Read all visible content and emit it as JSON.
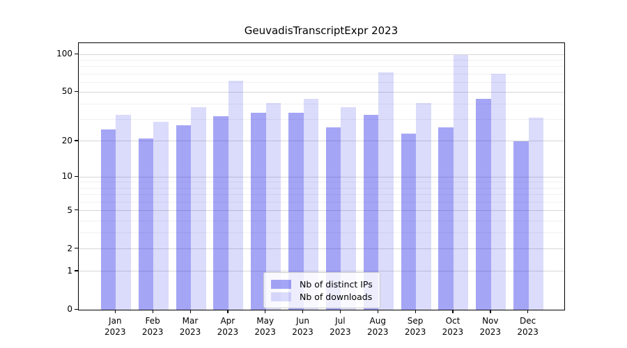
{
  "title": "GeuvadisTranscriptExpr 2023",
  "colors": {
    "background": "#ffffff",
    "axis": "#000000",
    "grid_major": "rgba(0,0,0,0.16)",
    "grid_minor": "rgba(0,0,0,0.06)",
    "bar_distinct_ips": "rgba(40,40,230,0.42)",
    "bar_downloads": "rgba(40,40,230,0.17)",
    "legend_border": "#cccccc"
  },
  "chart_data": {
    "type": "bar",
    "title": "GeuvadisTranscriptExpr 2023",
    "categories": [
      "Jan 2023",
      "Feb 2023",
      "Mar 2023",
      "Apr 2023",
      "May 2023",
      "Jun 2023",
      "Jul 2023",
      "Aug 2023",
      "Sep 2023",
      "Oct 2023",
      "Nov 2023",
      "Dec 2023"
    ],
    "series": [
      {
        "name": "Nb of distinct IPs",
        "color": "rgba(40,40,230,0.42)",
        "values": [
          25,
          21,
          27,
          32,
          34,
          34,
          26,
          33,
          23,
          26,
          44,
          20
        ]
      },
      {
        "name": "Nb of downloads",
        "color": "rgba(40,40,230,0.17)",
        "values": [
          33,
          29,
          38,
          62,
          41,
          44,
          38,
          72,
          41,
          99,
          70,
          31
        ]
      }
    ],
    "xlabel": "",
    "ylabel": "",
    "yscale": "log1p",
    "ylim": [
      0,
      100
    ],
    "y_major_ticks": [
      100,
      50,
      20,
      10,
      5,
      2,
      1,
      0
    ],
    "y_minor_gridlines": [
      90,
      80,
      70,
      60,
      40,
      30,
      9,
      8,
      7,
      6,
      4,
      3
    ],
    "grid": true,
    "legend_position": "lower center"
  },
  "legend": {
    "entries": [
      {
        "label": "Nb of distinct IPs"
      },
      {
        "label": "Nb of downloads"
      }
    ]
  }
}
